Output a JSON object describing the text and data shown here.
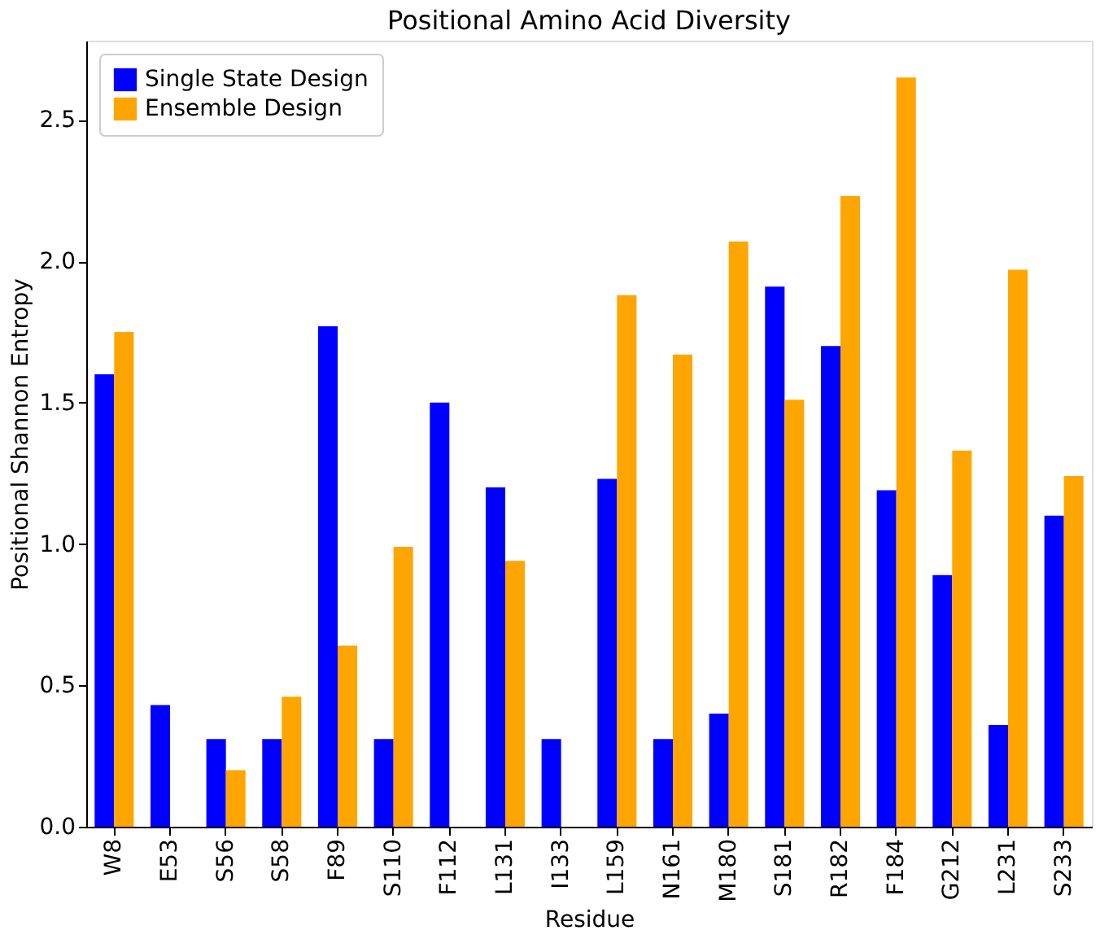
{
  "chart_data": {
    "type": "bar",
    "title": "Positional Amino Acid Diversity",
    "xlabel": "Residue",
    "ylabel": "Positional Shannon Entropy",
    "categories": [
      "W8",
      "E53",
      "S56",
      "S58",
      "F89",
      "S110",
      "F112",
      "L131",
      "I133",
      "L159",
      "N161",
      "M180",
      "S181",
      "R182",
      "F184",
      "G212",
      "L231",
      "S233"
    ],
    "series": [
      {
        "name": "Single State Design",
        "color": "#0000ff",
        "values": [
          1.6,
          0.43,
          0.31,
          0.31,
          1.77,
          0.31,
          1.5,
          1.2,
          0.31,
          1.23,
          0.31,
          0.4,
          1.91,
          1.7,
          1.19,
          0.89,
          0.36,
          1.1
        ]
      },
      {
        "name": "Ensemble Design",
        "color": "#ffa500",
        "values": [
          1.75,
          0,
          0.2,
          0.46,
          0.64,
          0.99,
          0,
          0.94,
          0,
          1.88,
          1.67,
          2.07,
          1.51,
          2.23,
          2.65,
          1.33,
          1.97,
          1.24
        ]
      }
    ],
    "ylim": [
      0,
      2.78
    ],
    "yticks": [
      {
        "value": 0,
        "label": "0.0"
      },
      0.5,
      {
        "value": 1,
        "label": "1.0"
      },
      1.5,
      {
        "value": 2,
        "label": "2.0"
      },
      2.5
    ],
    "grid": false,
    "legend": "top left"
  }
}
